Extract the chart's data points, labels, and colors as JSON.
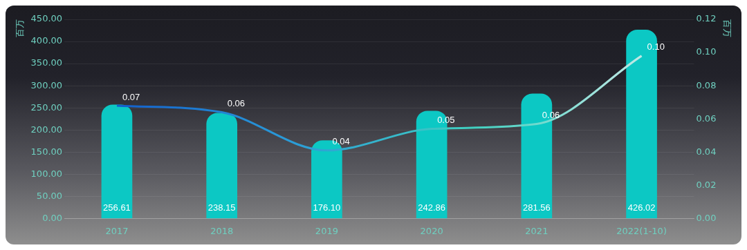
{
  "chart_data": {
    "type": "bar",
    "ylabel": "百万",
    "y2label": "百万",
    "categories": [
      "2017",
      "2018",
      "2019",
      "2020",
      "2021",
      "2022(1-10)"
    ],
    "series": [
      {
        "color": "#0cc8c4",
        "values": [
          256.61,
          238.15,
          176.1,
          242.86,
          281.56,
          426.02
        ],
        "value_labels": [
          "256.61",
          "238.15",
          "176.10",
          "242.86",
          "281.56",
          "426.02"
        ]
      },
      {
        "type": "line",
        "axis": "y2",
        "color": "#2a9ad8",
        "values": [
          0.068,
          0.064,
          0.041,
          0.054,
          0.057,
          0.098
        ],
        "value_labels": [
          "0.07",
          "0.06",
          "0.04",
          "0.05",
          "0.06",
          "0.10"
        ]
      }
    ],
    "ylim": [
      0,
      450
    ],
    "yticks": [
      {
        "value": 0,
        "label": "0.00"
      },
      {
        "value": 50,
        "label": "50.00"
      },
      {
        "value": 100,
        "label": "100.00"
      },
      {
        "value": 150,
        "label": "150.00"
      },
      {
        "value": 200,
        "label": "200.00"
      },
      {
        "value": 250,
        "label": "250.00"
      },
      {
        "value": 300,
        "label": "300.00"
      },
      {
        "value": 350,
        "label": "350.00"
      },
      {
        "value": 400,
        "label": "400.00"
      },
      {
        "value": 450,
        "label": "450.00"
      }
    ],
    "y2lim": [
      0,
      0.12
    ],
    "y2ticks": [
      {
        "value": 0,
        "label": "0.00"
      },
      {
        "value": 0.02,
        "label": "0.02"
      },
      {
        "value": 0.04,
        "label": "0.04"
      },
      {
        "value": 0.06,
        "label": "0.06"
      },
      {
        "value": 0.08,
        "label": "0.08"
      },
      {
        "value": 0.1,
        "label": "0.10"
      },
      {
        "value": 0.12,
        "label": "0.12"
      }
    ],
    "grid": "y",
    "legend": false,
    "marker": "none"
  }
}
